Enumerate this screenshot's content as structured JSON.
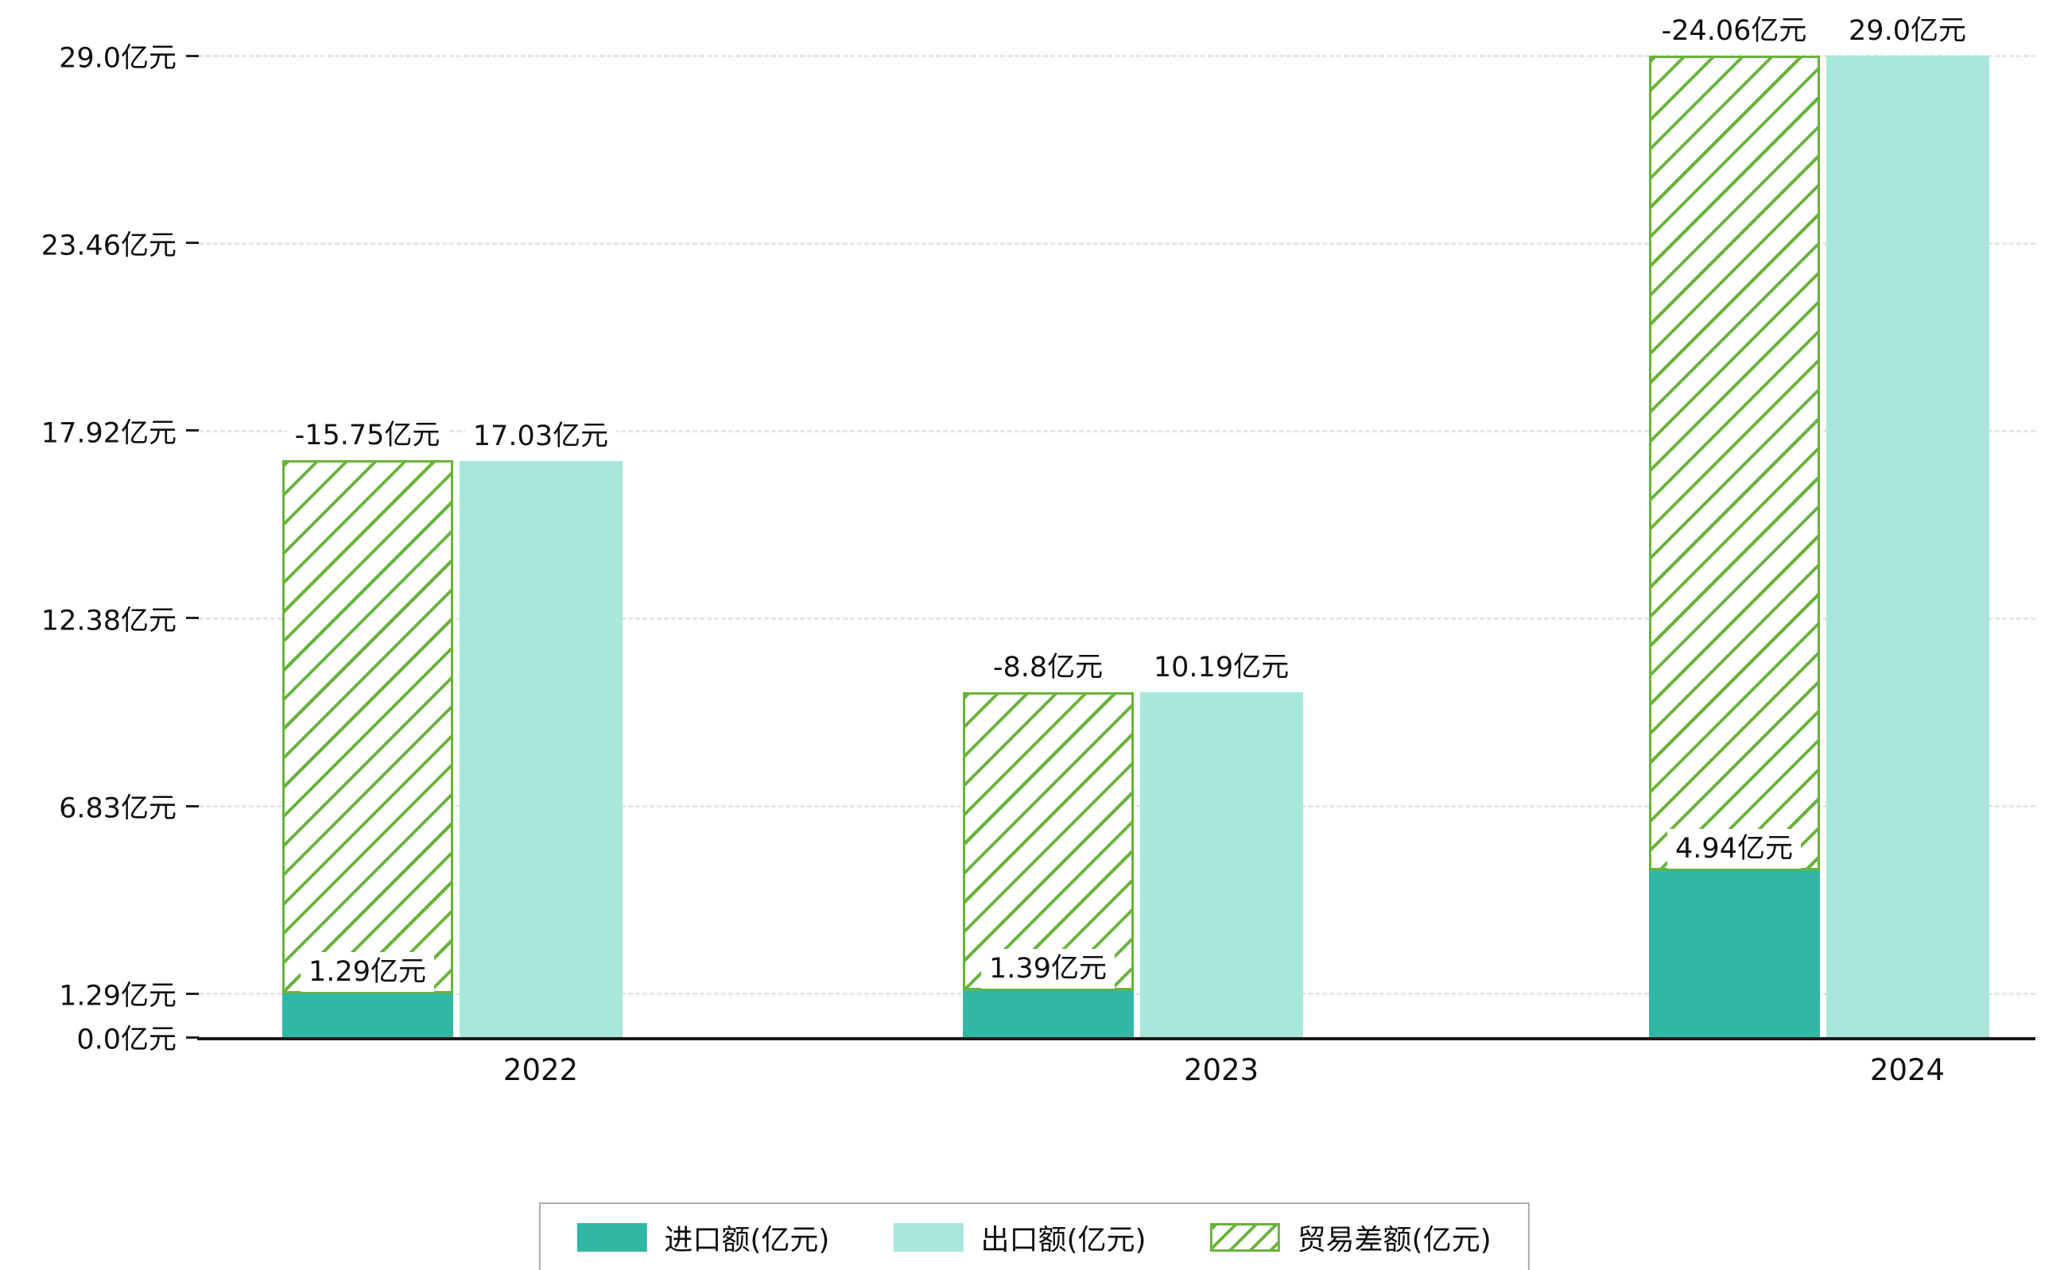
{
  "unit": "亿元",
  "chart_data": {
    "type": "bar",
    "categories": [
      "2022",
      "2023",
      "2024"
    ],
    "series": [
      {
        "name": "进口额(亿元)",
        "role": "import",
        "values": [
          1.29,
          1.39,
          4.94
        ],
        "value_labels": [
          "1.29亿元",
          "1.39亿元",
          "4.94亿元"
        ],
        "color": "#31b8a4"
      },
      {
        "name": "出口额(亿元)",
        "role": "export",
        "values": [
          17.03,
          10.19,
          29.0
        ],
        "value_labels": [
          "17.03亿元",
          "10.19亿元",
          "29.0亿元"
        ],
        "color": "#a9e7db"
      },
      {
        "name": "贸易差额(亿元)",
        "role": "trade-balance",
        "values": [
          -15.75,
          -8.8,
          -24.06
        ],
        "value_labels": [
          "-15.75亿元",
          "-8.8亿元",
          "-24.06亿元"
        ],
        "color": "#69b33c",
        "hatch": "/",
        "drawn_as": "stacked on top of import bar, height equals absolute trade balance"
      }
    ],
    "y_ticks": [
      {
        "value": 0.0,
        "label": "0.0亿元"
      },
      {
        "value": 1.29,
        "label": "1.29亿元"
      },
      {
        "value": 6.83,
        "label": "6.83亿元"
      },
      {
        "value": 12.38,
        "label": "12.38亿元"
      },
      {
        "value": 17.92,
        "label": "17.92亿元"
      },
      {
        "value": 23.46,
        "label": "23.46亿元"
      },
      {
        "value": 29.0,
        "label": "29.0亿元"
      }
    ],
    "ylim": [
      0,
      29.0
    ],
    "grid": true,
    "grid_style": "dashed",
    "legend_position": "bottom-center"
  }
}
